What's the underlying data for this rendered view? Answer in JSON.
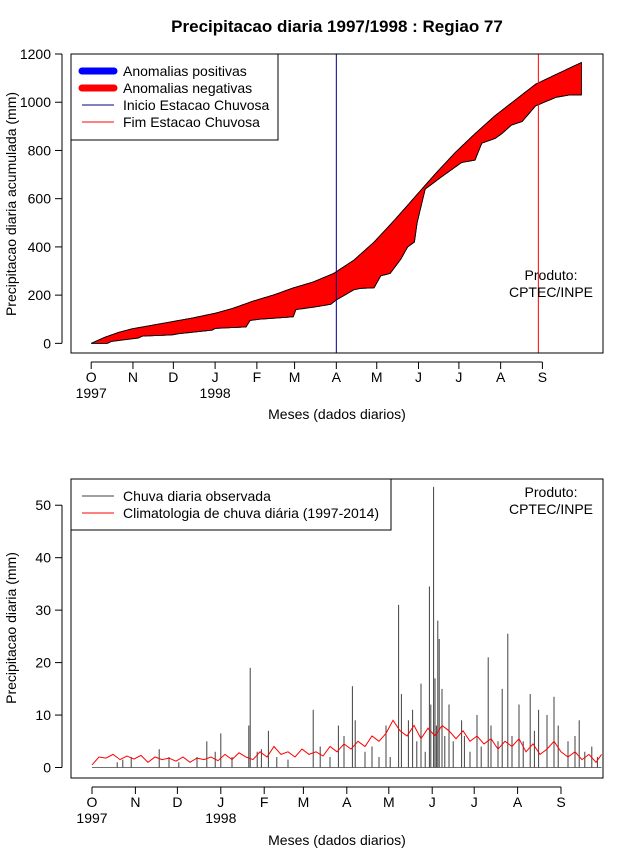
{
  "chart_data": [
    {
      "type": "area",
      "title": "Precipitacao diaria 1997/1998 : Regiao 77",
      "xlabel": "Meses (dados diarios)",
      "ylabel": "Precipitacao diaria acumulada (mm)",
      "ylim": [
        -40,
        1200
      ],
      "yticks": [
        0,
        200,
        400,
        600,
        800,
        1000,
        1200
      ],
      "month_ticks": [
        {
          "label": "O",
          "day": 0
        },
        {
          "label": "N",
          "day": 31
        },
        {
          "label": "D",
          "day": 61
        },
        {
          "label": "J",
          "day": 92
        },
        {
          "label": "F",
          "day": 123
        },
        {
          "label": "M",
          "day": 151
        },
        {
          "label": "A",
          "day": 182
        },
        {
          "label": "M",
          "day": 212
        },
        {
          "label": "J",
          "day": 243
        },
        {
          "label": "J",
          "day": 273
        },
        {
          "label": "A",
          "day": 304
        },
        {
          "label": "S",
          "day": 335
        }
      ],
      "year_labels": [
        {
          "label": "1997",
          "day": 0
        },
        {
          "label": "1998",
          "day": 92
        }
      ],
      "xlim": [
        -15,
        380
      ],
      "onset_day": 182,
      "end_day": 332,
      "produto": [
        "Produto:",
        "CPTEC/INPE"
      ],
      "legend": [
        {
          "label": "Anomalias positivas",
          "color": "#0000ff",
          "style": "thick"
        },
        {
          "label": "Anomalias negativas",
          "color": "#ff0000",
          "style": "thick"
        },
        {
          "label": "Inicio Estacao Chuvosa",
          "color": "#00008b",
          "style": "thin"
        },
        {
          "label": "Fim Estacao Chuvosa",
          "color": "#ff0000",
          "style": "thin"
        }
      ],
      "climatology_accum": {
        "day": [
          0,
          10,
          20,
          30,
          45,
          60,
          75,
          92,
          105,
          120,
          135,
          150,
          165,
          180,
          195,
          210,
          225,
          240,
          255,
          270,
          285,
          300,
          315,
          330,
          345,
          364
        ],
        "value": [
          0,
          25,
          45,
          60,
          75,
          90,
          105,
          125,
          145,
          175,
          200,
          230,
          255,
          290,
          345,
          420,
          510,
          605,
          700,
          790,
          870,
          945,
          1010,
          1075,
          1115,
          1165
        ]
      },
      "observed_accum": {
        "day": [
          0,
          12,
          15,
          25,
          35,
          38,
          60,
          65,
          90,
          92,
          115,
          118,
          125,
          150,
          152,
          165,
          178,
          182,
          195,
          200,
          210,
          215,
          222,
          230,
          235,
          240,
          242,
          248,
          260,
          275,
          285,
          290,
          300,
          305,
          312,
          320,
          330,
          345,
          355,
          364
        ],
        "value": [
          0,
          0,
          8,
          15,
          22,
          30,
          35,
          40,
          55,
          62,
          68,
          95,
          100,
          110,
          140,
          150,
          162,
          180,
          222,
          228,
          230,
          280,
          290,
          350,
          400,
          420,
          500,
          640,
          690,
          750,
          760,
          830,
          850,
          870,
          905,
          920,
          985,
          1020,
          1030,
          1030
        ]
      }
    },
    {
      "type": "bar",
      "xlabel": "Meses (dados diarios)",
      "ylabel": "Precipitacao diaria (mm)",
      "ylim": [
        -2,
        55
      ],
      "yticks": [
        0,
        10,
        20,
        30,
        40,
        50
      ],
      "month_ticks": [
        {
          "label": "O",
          "day": 0
        },
        {
          "label": "N",
          "day": 31
        },
        {
          "label": "D",
          "day": 61
        },
        {
          "label": "J",
          "day": 92
        },
        {
          "label": "F",
          "day": 123
        },
        {
          "label": "M",
          "day": 151
        },
        {
          "label": "A",
          "day": 182
        },
        {
          "label": "M",
          "day": 212
        },
        {
          "label": "J",
          "day": 243
        },
        {
          "label": "J",
          "day": 273
        },
        {
          "label": "A",
          "day": 304
        },
        {
          "label": "S",
          "day": 335
        }
      ],
      "year_labels": [
        {
          "label": "1997",
          "day": 0
        },
        {
          "label": "1998",
          "day": 92
        }
      ],
      "xlim": [
        -15,
        365
      ],
      "produto": [
        "Produto:",
        "CPTEC/INPE"
      ],
      "legend": [
        {
          "label": "Chuva diaria observada",
          "color": "#404040",
          "style": "thin"
        },
        {
          "label": "Climatologia de chuva diária (1997-2014)",
          "color": "#ff0000",
          "style": "thin"
        }
      ],
      "daily_bars": [
        [
          18,
          1.0
        ],
        [
          22,
          1.5
        ],
        [
          28,
          2.0
        ],
        [
          48,
          3.5
        ],
        [
          55,
          2.0
        ],
        [
          62,
          1.0
        ],
        [
          75,
          2.0
        ],
        [
          82,
          5.0
        ],
        [
          88,
          3.0
        ],
        [
          92,
          6.5
        ],
        [
          100,
          2.0
        ],
        [
          112,
          8.0
        ],
        [
          113,
          19.0
        ],
        [
          118,
          3.0
        ],
        [
          121,
          3.5
        ],
        [
          126,
          7.0
        ],
        [
          132,
          2.0
        ],
        [
          140,
          1.5
        ],
        [
          158,
          11.0
        ],
        [
          163,
          4.0
        ],
        [
          170,
          2.0
        ],
        [
          176,
          8.0
        ],
        [
          180,
          6.0
        ],
        [
          186,
          15.5
        ],
        [
          188,
          9.0
        ],
        [
          195,
          3.0
        ],
        [
          200,
          4.0
        ],
        [
          205,
          2.0
        ],
        [
          210,
          8.0
        ],
        [
          213,
          2.0
        ],
        [
          219,
          31.0
        ],
        [
          221,
          14.0
        ],
        [
          226,
          9.0
        ],
        [
          229,
          11.0
        ],
        [
          232,
          5.0
        ],
        [
          235,
          16.0
        ],
        [
          238,
          3.0
        ],
        [
          241,
          34.5
        ],
        [
          242,
          12.0
        ],
        [
          244,
          53.5
        ],
        [
          245,
          17.0
        ],
        [
          246,
          8.0
        ],
        [
          247,
          28.0
        ],
        [
          248,
          24.5
        ],
        [
          250,
          15.0
        ],
        [
          252,
          6.0
        ],
        [
          255,
          12.0
        ],
        [
          258,
          5.0
        ],
        [
          264,
          9.0
        ],
        [
          266,
          6.0
        ],
        [
          270,
          3.0
        ],
        [
          275,
          10.0
        ],
        [
          278,
          4.0
        ],
        [
          283,
          21.0
        ],
        [
          285,
          8.0
        ],
        [
          290,
          5.0
        ],
        [
          293,
          15.0
        ],
        [
          297,
          25.5
        ],
        [
          300,
          6.0
        ],
        [
          305,
          12.0
        ],
        [
          308,
          5.0
        ],
        [
          313,
          14.0
        ],
        [
          316,
          7.0
        ],
        [
          319,
          11.0
        ],
        [
          325,
          10.0
        ],
        [
          330,
          13.5
        ],
        [
          333,
          8.0
        ],
        [
          340,
          5.0
        ],
        [
          345,
          6.0
        ],
        [
          348,
          9.0
        ],
        [
          352,
          3.0
        ],
        [
          357,
          4.0
        ],
        [
          361,
          2.0
        ]
      ],
      "climatology_daily": {
        "day": [
          0,
          5,
          10,
          15,
          20,
          25,
          30,
          35,
          40,
          45,
          50,
          55,
          60,
          65,
          70,
          75,
          80,
          85,
          90,
          95,
          100,
          105,
          110,
          115,
          120,
          125,
          130,
          135,
          140,
          145,
          150,
          155,
          160,
          165,
          170,
          175,
          180,
          185,
          190,
          195,
          200,
          205,
          210,
          215,
          220,
          225,
          230,
          235,
          240,
          245,
          250,
          255,
          260,
          265,
          270,
          275,
          280,
          285,
          290,
          295,
          300,
          305,
          310,
          315,
          320,
          325,
          330,
          335,
          340,
          345,
          350,
          355,
          360,
          364
        ],
        "value": [
          0.5,
          2.0,
          1.8,
          2.5,
          1.5,
          2.2,
          1.6,
          2.3,
          1.0,
          2.0,
          1.5,
          1.8,
          1.2,
          2.0,
          1.0,
          1.8,
          1.5,
          2.0,
          1.3,
          2.5,
          1.5,
          2.8,
          2.0,
          1.5,
          3.0,
          2.0,
          4.0,
          2.5,
          3.0,
          2.0,
          3.5,
          2.5,
          3.0,
          2.2,
          4.0,
          3.0,
          4.5,
          3.5,
          5.0,
          4.0,
          6.0,
          5.0,
          6.5,
          9.0,
          7.0,
          6.0,
          8.0,
          5.5,
          7.5,
          6.0,
          8.0,
          7.0,
          5.5,
          7.0,
          5.0,
          6.0,
          4.5,
          5.5,
          3.5,
          5.0,
          4.0,
          5.5,
          3.0,
          4.5,
          2.5,
          3.5,
          5.0,
          3.0,
          2.0,
          3.0,
          1.5,
          2.5,
          1.0,
          2.5
        ]
      }
    }
  ]
}
